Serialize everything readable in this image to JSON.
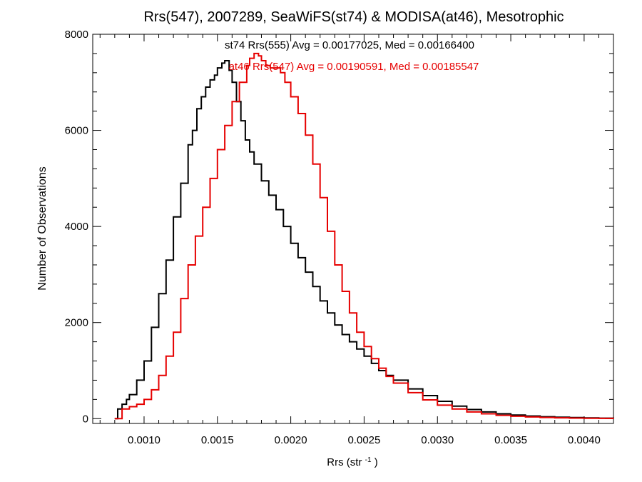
{
  "chart_data": {
    "type": "line",
    "title": "Rrs(547), 2007289, SeaWiFS(st74) & MODISA(at46), Mesotrophic",
    "xlabel_base": "Rrs (str",
    "xlabel_sup": "-1",
    "xlabel_close": ")",
    "ylabel": "Number of Observations",
    "xlim": [
      0.00065,
      0.0042
    ],
    "ylim": [
      -100,
      8000
    ],
    "x_ticks": [
      {
        "value": 0.001,
        "label": "0.0010"
      },
      {
        "value": 0.0015,
        "label": "0.0015"
      },
      {
        "value": 0.002,
        "label": "0.0020"
      },
      {
        "value": 0.0025,
        "label": "0.0025"
      },
      {
        "value": 0.003,
        "label": "0.0030"
      },
      {
        "value": 0.0035,
        "label": "0.0035"
      },
      {
        "value": 0.004,
        "label": "0.0040"
      }
    ],
    "y_ticks": [
      {
        "value": 0,
        "label": "0"
      },
      {
        "value": 2000,
        "label": "2000"
      },
      {
        "value": 4000,
        "label": "4000"
      },
      {
        "value": 6000,
        "label": "6000"
      },
      {
        "value": 8000,
        "label": "8000"
      }
    ],
    "grid": false,
    "step": "histogram",
    "series": [
      {
        "name": "st74",
        "annotation": "st74 Rrs(555) Avg = 0.00177025, Med = 0.00166400",
        "color": "#000000",
        "x": [
          0.0008,
          0.00082,
          0.00085,
          0.00088,
          0.0009,
          0.00095,
          0.001,
          0.00105,
          0.0011,
          0.00115,
          0.0012,
          0.00125,
          0.0013,
          0.00133,
          0.00136,
          0.00139,
          0.00142,
          0.00145,
          0.00148,
          0.0015,
          0.00153,
          0.00155,
          0.00158,
          0.0016,
          0.00163,
          0.00166,
          0.00169,
          0.00172,
          0.00175,
          0.0018,
          0.00185,
          0.0019,
          0.00195,
          0.002,
          0.00205,
          0.0021,
          0.00215,
          0.0022,
          0.00225,
          0.0023,
          0.00235,
          0.0024,
          0.00245,
          0.0025,
          0.00255,
          0.0026,
          0.00265,
          0.0027,
          0.0028,
          0.0029,
          0.003,
          0.0031,
          0.0032,
          0.0033,
          0.0034,
          0.0035,
          0.0036,
          0.0037,
          0.0038,
          0.0039,
          0.004,
          0.0041,
          0.0042
        ],
        "y": [
          0,
          200,
          300,
          400,
          500,
          800,
          1200,
          1900,
          2600,
          3300,
          4200,
          4900,
          5700,
          6000,
          6450,
          6700,
          6900,
          7050,
          7150,
          7300,
          7400,
          7450,
          7250,
          7000,
          6600,
          6200,
          5800,
          5550,
          5300,
          4950,
          4650,
          4350,
          4000,
          3650,
          3350,
          3050,
          2750,
          2450,
          2200,
          1950,
          1750,
          1600,
          1450,
          1300,
          1150,
          1000,
          900,
          800,
          620,
          480,
          360,
          260,
          190,
          140,
          100,
          75,
          55,
          40,
          30,
          22,
          15,
          10,
          5
        ]
      },
      {
        "name": "at46",
        "annotation": "at46 Rrs(547) Avg = 0.00190591, Med = 0.00185547",
        "color": "#e60000",
        "x": [
          0.0008,
          0.00085,
          0.0009,
          0.00095,
          0.001,
          0.00105,
          0.0011,
          0.00115,
          0.0012,
          0.00125,
          0.0013,
          0.00135,
          0.0014,
          0.00145,
          0.0015,
          0.00155,
          0.0016,
          0.00165,
          0.0017,
          0.00172,
          0.00175,
          0.00178,
          0.0018,
          0.00183,
          0.00186,
          0.0019,
          0.00193,
          0.00196,
          0.002,
          0.00205,
          0.0021,
          0.00215,
          0.0022,
          0.00225,
          0.0023,
          0.00235,
          0.0024,
          0.00245,
          0.0025,
          0.00255,
          0.0026,
          0.00265,
          0.0027,
          0.0028,
          0.0029,
          0.003,
          0.0031,
          0.0032,
          0.0033,
          0.0034,
          0.0035,
          0.0036,
          0.0037,
          0.0038,
          0.0039,
          0.004,
          0.0041,
          0.0042
        ],
        "y": [
          0,
          200,
          250,
          300,
          400,
          600,
          900,
          1300,
          1800,
          2500,
          3200,
          3800,
          4400,
          5000,
          5600,
          6100,
          6600,
          7000,
          7350,
          7500,
          7600,
          7550,
          7450,
          7350,
          7300,
          7300,
          7200,
          7000,
          6700,
          6350,
          5900,
          5300,
          4600,
          3900,
          3200,
          2650,
          2200,
          1800,
          1500,
          1250,
          1050,
          880,
          740,
          540,
          390,
          280,
          200,
          140,
          100,
          70,
          50,
          35,
          25,
          18,
          12,
          8,
          5,
          3
        ]
      }
    ]
  }
}
